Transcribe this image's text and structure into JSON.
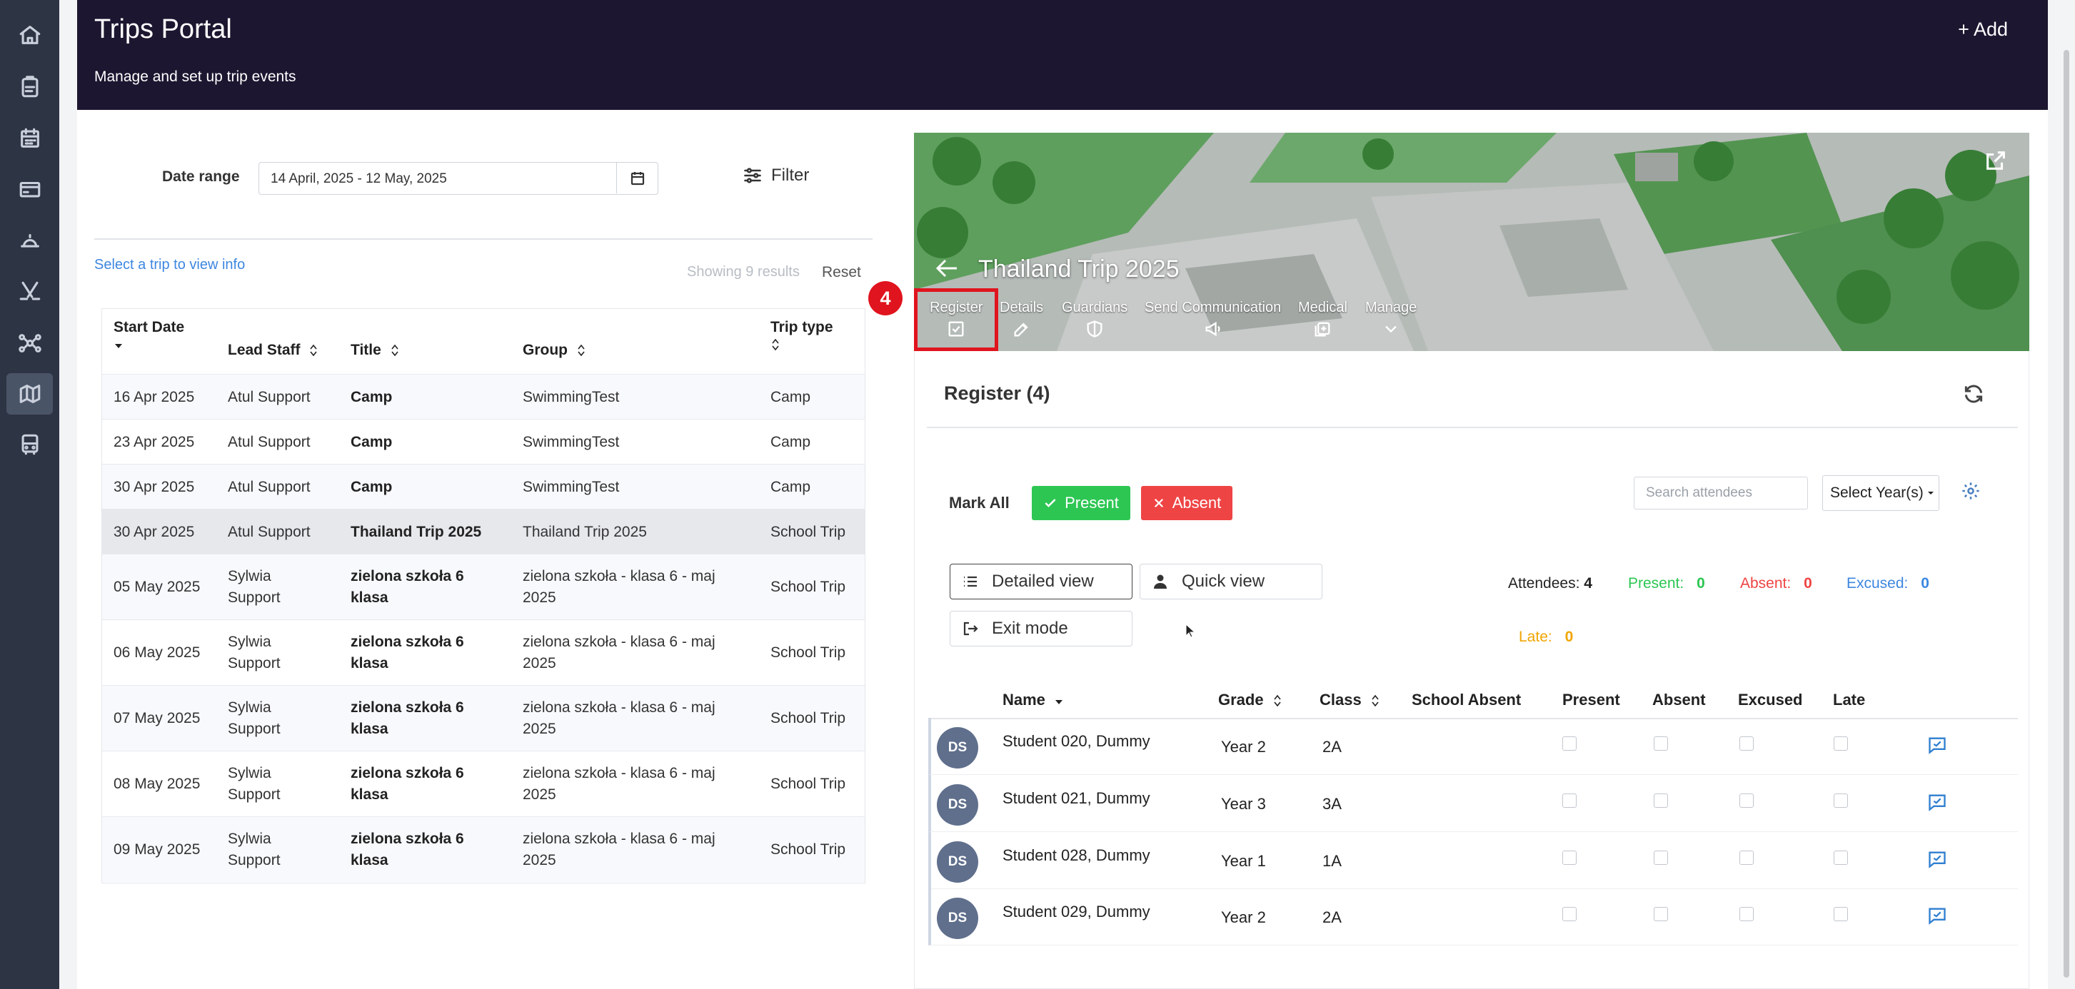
{
  "sidebar": {
    "items": [
      {
        "icon": "home-icon",
        "active": false
      },
      {
        "icon": "clipboard-icon",
        "active": false
      },
      {
        "icon": "calendar-icon",
        "active": false
      },
      {
        "icon": "card-icon",
        "active": false
      },
      {
        "icon": "bell-icon",
        "active": false
      },
      {
        "icon": "sports-icon",
        "active": false
      },
      {
        "icon": "network-icon",
        "active": false
      },
      {
        "icon": "map-icon",
        "active": true
      },
      {
        "icon": "bus-icon",
        "active": false
      }
    ]
  },
  "header": {
    "title": "Trips Portal",
    "subtitle": "Manage and set up trip events",
    "add_label": "+ Add"
  },
  "filters": {
    "date_range_label": "Date range",
    "date_range_value": "14 April, 2025 - 12 May, 2025",
    "filter_label": "Filter"
  },
  "list": {
    "select_hint": "Select a trip to view info",
    "showing": "Showing 9 results",
    "reset": "Reset",
    "columns": [
      "Start Date",
      "Lead Staff",
      "Title",
      "Group",
      "Trip type"
    ],
    "rows": [
      {
        "date": "16 Apr 2025",
        "staff": [
          "Atul Support"
        ],
        "title": [
          "Camp"
        ],
        "group": [
          "SwimmingTest"
        ],
        "type": "Camp"
      },
      {
        "date": "23 Apr 2025",
        "staff": [
          "Atul Support"
        ],
        "title": [
          "Camp"
        ],
        "group": [
          "SwimmingTest"
        ],
        "type": "Camp"
      },
      {
        "date": "30 Apr 2025",
        "staff": [
          "Atul Support"
        ],
        "title": [
          "Camp"
        ],
        "group": [
          "SwimmingTest"
        ],
        "type": "Camp"
      },
      {
        "date": "30 Apr 2025",
        "staff": [
          "Atul Support"
        ],
        "title": [
          "Thailand Trip 2025"
        ],
        "group": [
          "Thailand Trip 2025"
        ],
        "type": "School Trip"
      },
      {
        "date": "05 May 2025",
        "staff": [
          "Sylwia",
          "Support"
        ],
        "title": [
          "zielona szkoła 6",
          "klasa"
        ],
        "group": [
          "zielona szkoła - klasa 6 - maj",
          "2025"
        ],
        "type": "School Trip"
      },
      {
        "date": "06 May 2025",
        "staff": [
          "Sylwia",
          "Support"
        ],
        "title": [
          "zielona szkoła 6",
          "klasa"
        ],
        "group": [
          "zielona szkoła - klasa 6 - maj",
          "2025"
        ],
        "type": "School Trip"
      },
      {
        "date": "07 May 2025",
        "staff": [
          "Sylwia",
          "Support"
        ],
        "title": [
          "zielona szkoła 6",
          "klasa"
        ],
        "group": [
          "zielona szkoła - klasa 6 - maj",
          "2025"
        ],
        "type": "School Trip"
      },
      {
        "date": "08 May 2025",
        "staff": [
          "Sylwia",
          "Support"
        ],
        "title": [
          "zielona szkoła 6",
          "klasa"
        ],
        "group": [
          "zielona szkoła - klasa 6 - maj",
          "2025"
        ],
        "type": "School Trip"
      },
      {
        "date": "09 May 2025",
        "staff": [
          "Sylwia",
          "Support"
        ],
        "title": [
          "zielona szkoła 6",
          "klasa"
        ],
        "group": [
          "zielona szkoła - klasa 6 - maj",
          "2025"
        ],
        "type": "School Trip"
      }
    ]
  },
  "trip": {
    "title": "Thailand Trip 2025",
    "tabs": [
      {
        "label": "Register",
        "icon": "checkbox-icon"
      },
      {
        "label": "Details",
        "icon": "edit-icon"
      },
      {
        "label": "Guardians",
        "icon": "shield-icon"
      },
      {
        "label": "Send Communication",
        "icon": "megaphone-icon"
      },
      {
        "label": "Medical",
        "icon": "medical-icon"
      },
      {
        "label": "Manage",
        "icon": "chevron-down-icon"
      }
    ],
    "step_badge": "4"
  },
  "register": {
    "title": "Register (4)",
    "mark_all": "Mark All",
    "present_btn": "Present",
    "absent_btn": "Absent",
    "search_placeholder": "Search attendees",
    "select_year": "Select Year(s)",
    "detailed_view": "Detailed view",
    "quick_view": "Quick view",
    "exit_mode": "Exit mode",
    "stats": {
      "attendees_label": "Attendees:",
      "attendees": "4",
      "present_label": "Present:",
      "present": "0",
      "absent_label": "Absent:",
      "absent": "0",
      "excused_label": "Excused:",
      "excused": "0",
      "late_label": "Late:",
      "late": "0"
    },
    "columns": [
      "Name",
      "Grade",
      "Class",
      "School Absent",
      "Present",
      "Absent",
      "Excused",
      "Late"
    ],
    "students": [
      {
        "initials": "DS",
        "name": "Student 020, Dummy",
        "grade": "Year 2",
        "class": "2A"
      },
      {
        "initials": "DS",
        "name": "Student 021, Dummy",
        "grade": "Year 3",
        "class": "3A"
      },
      {
        "initials": "DS",
        "name": "Student 028, Dummy",
        "grade": "Year 1",
        "class": "1A"
      },
      {
        "initials": "DS",
        "name": "Student 029, Dummy",
        "grade": "Year 2",
        "class": "2A"
      }
    ]
  },
  "colors": {
    "header_bg": "#1d1630",
    "sidebar_bg": "#2d3444",
    "present_green": "#2dc653",
    "absent_red": "#ef4444",
    "excused_blue": "#3d87e0",
    "late_orange": "#f0a500",
    "highlight_red": "#e0141e"
  }
}
